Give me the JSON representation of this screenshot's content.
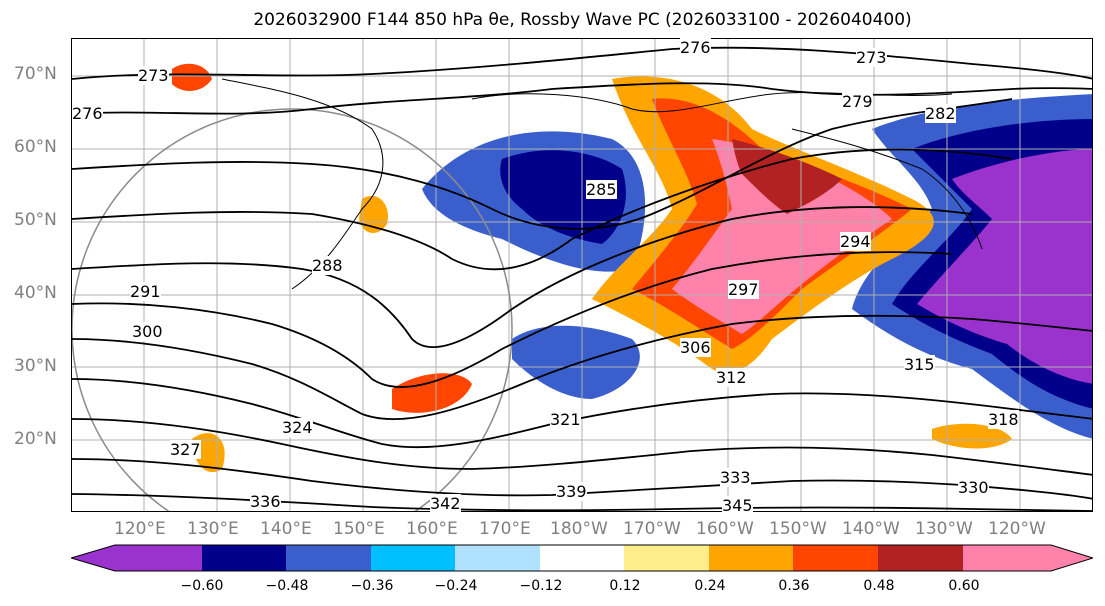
{
  "title": "2026032900 F144 850 hPa θe, Rossby Wave PC (2026033100 - 2026040400)",
  "map": {
    "lat_labels": [
      "70°N",
      "60°N",
      "50°N",
      "40°N",
      "30°N",
      "20°N"
    ],
    "lon_labels": [
      "120°E",
      "130°E",
      "140°E",
      "150°E",
      "160°E",
      "170°E",
      "180°W",
      "170°W",
      "160°W",
      "150°W",
      "140°W",
      "130°W",
      "120°W"
    ],
    "contour_labels": [
      "276",
      "273",
      "273",
      "276",
      "279",
      "282",
      "285",
      "288",
      "291",
      "294",
      "297",
      "300",
      "306",
      "312",
      "315",
      "318",
      "321",
      "324",
      "327",
      "330",
      "333",
      "336",
      "339",
      "342",
      "345"
    ]
  },
  "colorbar": {
    "ticks": [
      "−0.60",
      "−0.48",
      "−0.36",
      "−0.24",
      "−0.12",
      "0.12",
      "0.24",
      "0.36",
      "0.48",
      "0.60"
    ],
    "colors": [
      "#9a32cd",
      "#00008b",
      "#3a5fcd",
      "#00bfff",
      "#b0e2ff",
      "#ffffff",
      "#ffec8b",
      "#ffa500",
      "#ff4500",
      "#b22222",
      "#ff82ab",
      "#ff82ab"
    ]
  }
}
